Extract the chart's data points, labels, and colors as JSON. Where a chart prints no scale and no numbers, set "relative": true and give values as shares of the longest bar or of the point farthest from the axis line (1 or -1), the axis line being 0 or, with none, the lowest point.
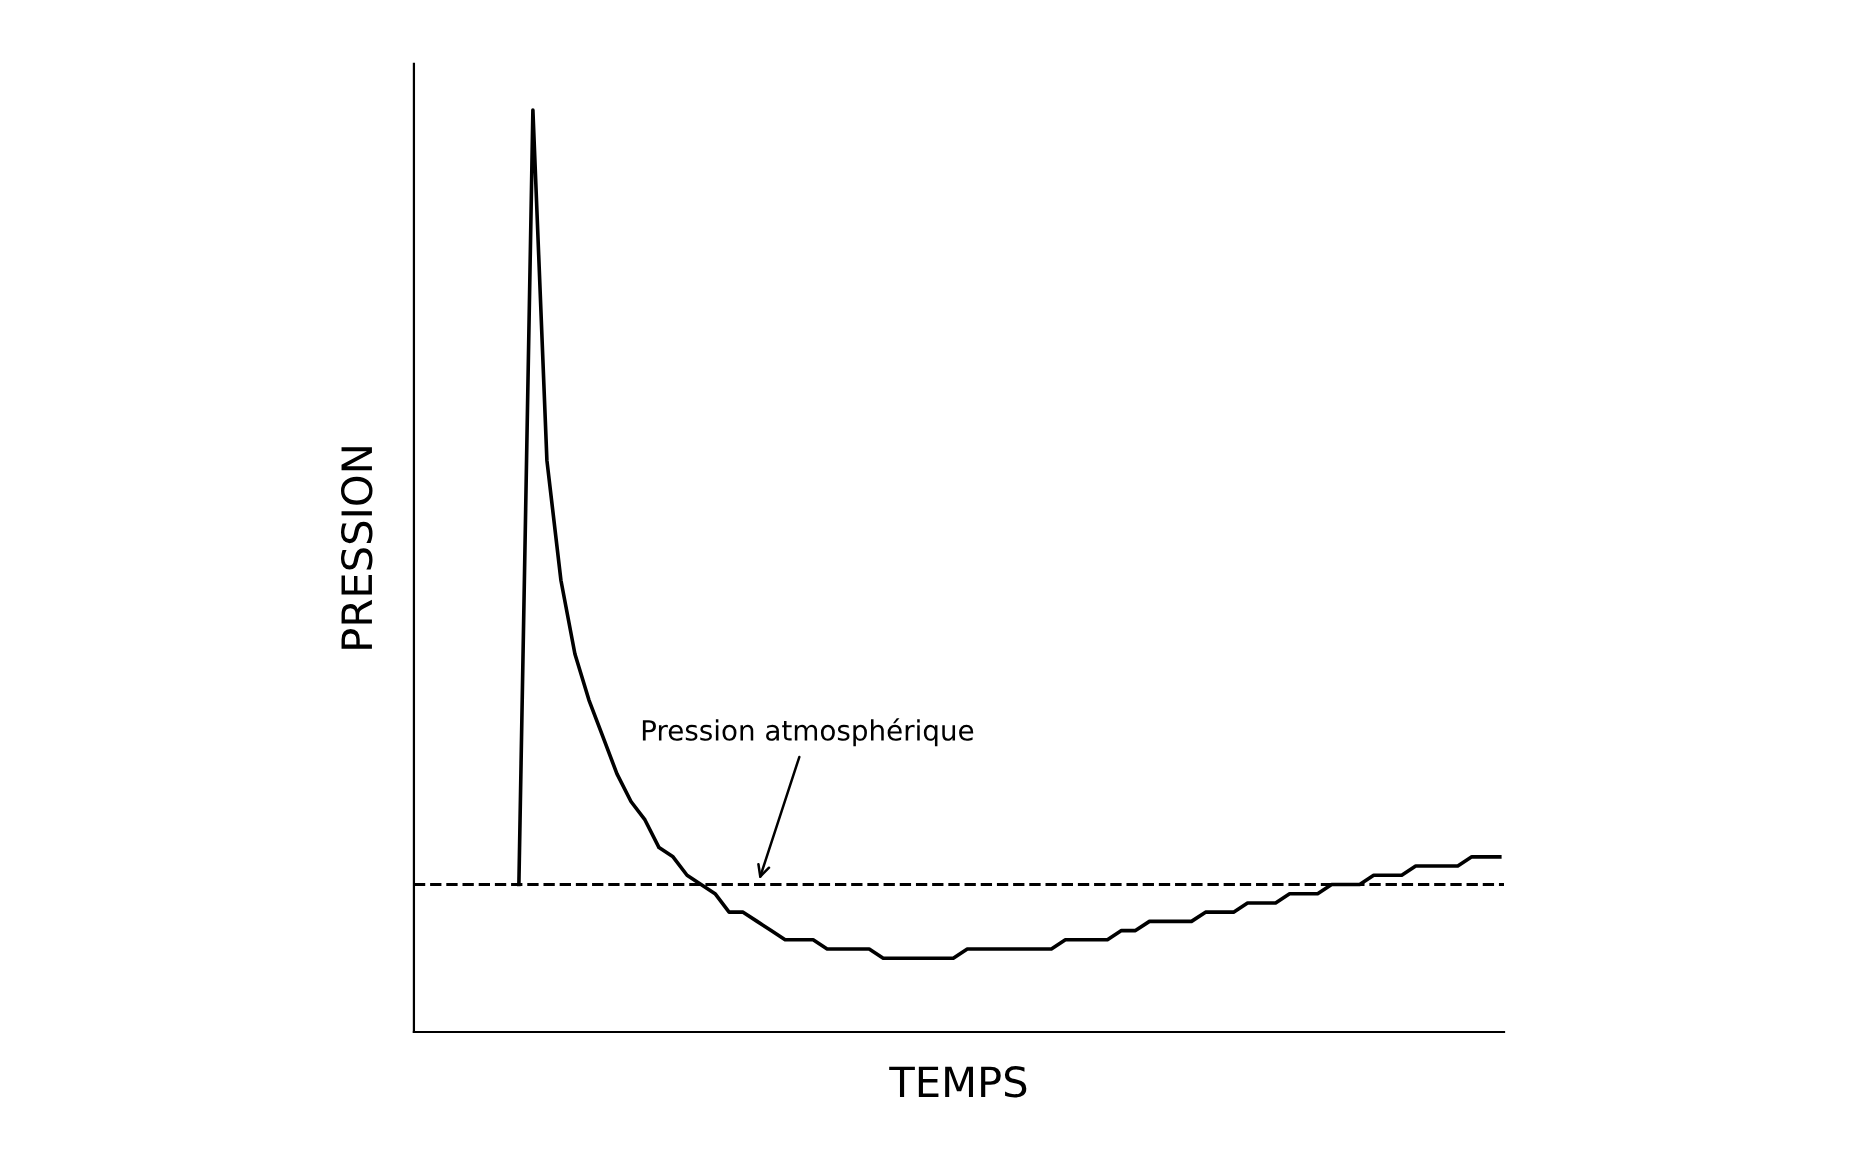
{
  "chart_data": {
    "type": "line",
    "relative": true,
    "xlabel": "TEMPS",
    "ylabel": "PRESSION",
    "marker": "none",
    "line_style": "solid",
    "categories": [
      null,
      null,
      null,
      null,
      null,
      null,
      null,
      null,
      null,
      null,
      null,
      null,
      null,
      null,
      null,
      null,
      null,
      null,
      null,
      null,
      null,
      null,
      null,
      null,
      null,
      null,
      null,
      null,
      null,
      null,
      null,
      null,
      null,
      null,
      null,
      null,
      null,
      null,
      null,
      null,
      null,
      null,
      null,
      null,
      null,
      null,
      null,
      null,
      null,
      null,
      null,
      null,
      null,
      null,
      null,
      null,
      null,
      null,
      null,
      null,
      null,
      null,
      null,
      null,
      null,
      null,
      null,
      null,
      null,
      null,
      null
    ],
    "series": [
      {
        "color": "#000000",
        "values": [
          0.16,
          1.0,
          0.62,
          0.49,
          0.41,
          0.36,
          0.32,
          0.28,
          0.25,
          0.23,
          0.2,
          0.19,
          0.17,
          0.16,
          0.15,
          0.13,
          0.13,
          0.12,
          0.11,
          0.1,
          0.1,
          0.1,
          0.09,
          0.09,
          0.09,
          0.09,
          0.08,
          0.08,
          0.08,
          0.08,
          0.08,
          0.08,
          0.09,
          0.09,
          0.09,
          0.09,
          0.09,
          0.09,
          0.09,
          0.1,
          0.1,
          0.1,
          0.1,
          0.11,
          0.11,
          0.12,
          0.12,
          0.12,
          0.12,
          0.13,
          0.13,
          0.13,
          0.14,
          0.14,
          0.14,
          0.15,
          0.15,
          0.15,
          0.16,
          0.16,
          0.16,
          0.17,
          0.17,
          0.17,
          0.18,
          0.18,
          0.18,
          0.18,
          0.19,
          0.19,
          0.19
        ]
      }
    ],
    "ref_lines": [
      {
        "axis": "y",
        "value": 0.16,
        "label": "Pression atmosphérique",
        "color": "#000000",
        "line_style": "dashed"
      }
    ]
  }
}
